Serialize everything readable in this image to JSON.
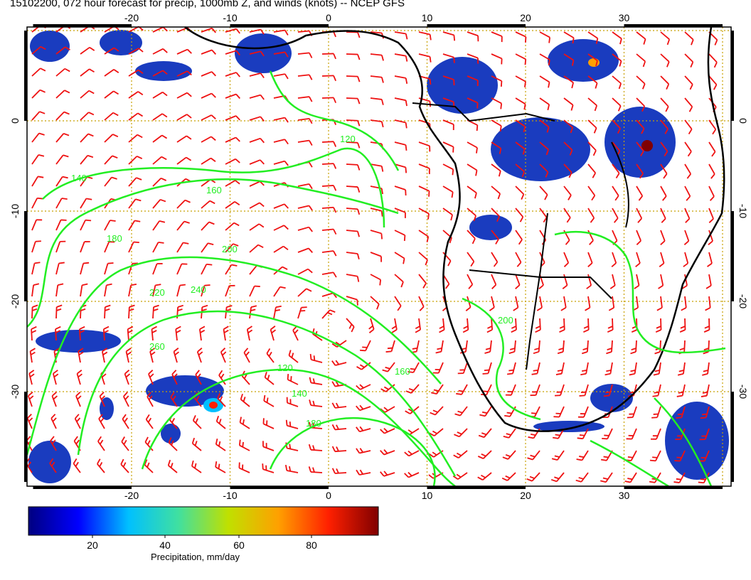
{
  "title": "15102200, 072 hour forecast for precip, 1000mb Z, and winds (knots) -- NCEP GFS",
  "lon_ticks": [
    "-20",
    "-10",
    "0",
    "10",
    "20",
    "30"
  ],
  "lat_ticks": [
    "0",
    "-10",
    "-20",
    "-30"
  ],
  "contour_labels": [
    "120",
    "140",
    "160",
    "180",
    "200",
    "220",
    "240",
    "260",
    "120",
    "140",
    "160",
    "180",
    "200"
  ],
  "colorbar": {
    "label": "Precipitation, mm/day",
    "ticks": [
      "20",
      "40",
      "60",
      "80"
    ],
    "colors": [
      "#000080",
      "#0000ff",
      "#00c0ff",
      "#40e0a0",
      "#c0e000",
      "#ffa000",
      "#ff2000",
      "#800000"
    ]
  },
  "colors": {
    "precip_blue": "#1a3cbf",
    "contour_green": "#22ee22",
    "barb_red": "#ee1111",
    "grid_gold": "#c8a000",
    "coast_black": "#000000"
  }
}
